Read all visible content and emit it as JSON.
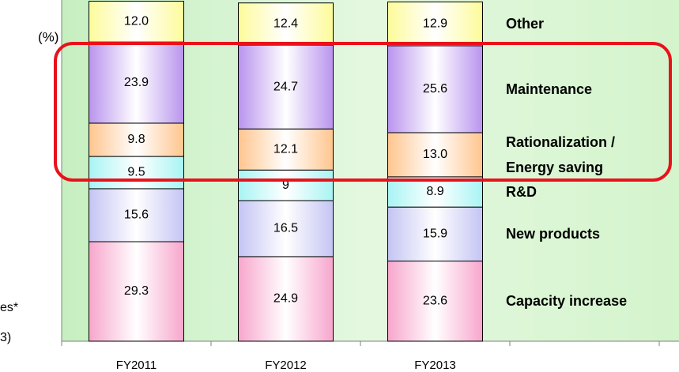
{
  "chart_data": {
    "type": "stacked_bar",
    "unit_label": "(%)",
    "annotations": [
      "es*",
      "3)"
    ],
    "categories": [
      "FY2011",
      "FY2012",
      "FY2013"
    ],
    "ylim": [
      0,
      100
    ],
    "series": [
      {
        "name": "Capacity increase",
        "color": "#f7a6cc",
        "values": [
          29.3,
          24.9,
          23.6
        ]
      },
      {
        "name": "New products",
        "color": "#c4c4f4",
        "values": [
          15.6,
          16.5,
          15.9
        ]
      },
      {
        "name": "R&D",
        "color": "#a8f4f4",
        "values": [
          9.5,
          9.0,
          8.9
        ]
      },
      {
        "name": "Rationalization / Energy saving",
        "color": "#ffc58e",
        "values": [
          9.8,
          12.1,
          13.0
        ],
        "value_labels": [
          "9.8",
          "12.1",
          "13.0"
        ]
      },
      {
        "name": "Maintenance",
        "color": "#b994ee",
        "values": [
          23.9,
          24.7,
          25.6
        ]
      },
      {
        "name": "Other",
        "color": "#fdfb9a",
        "values": [
          12.0,
          12.4,
          12.9
        ],
        "value_labels": [
          "12.0",
          "12.4",
          "12.9"
        ]
      }
    ]
  }
}
